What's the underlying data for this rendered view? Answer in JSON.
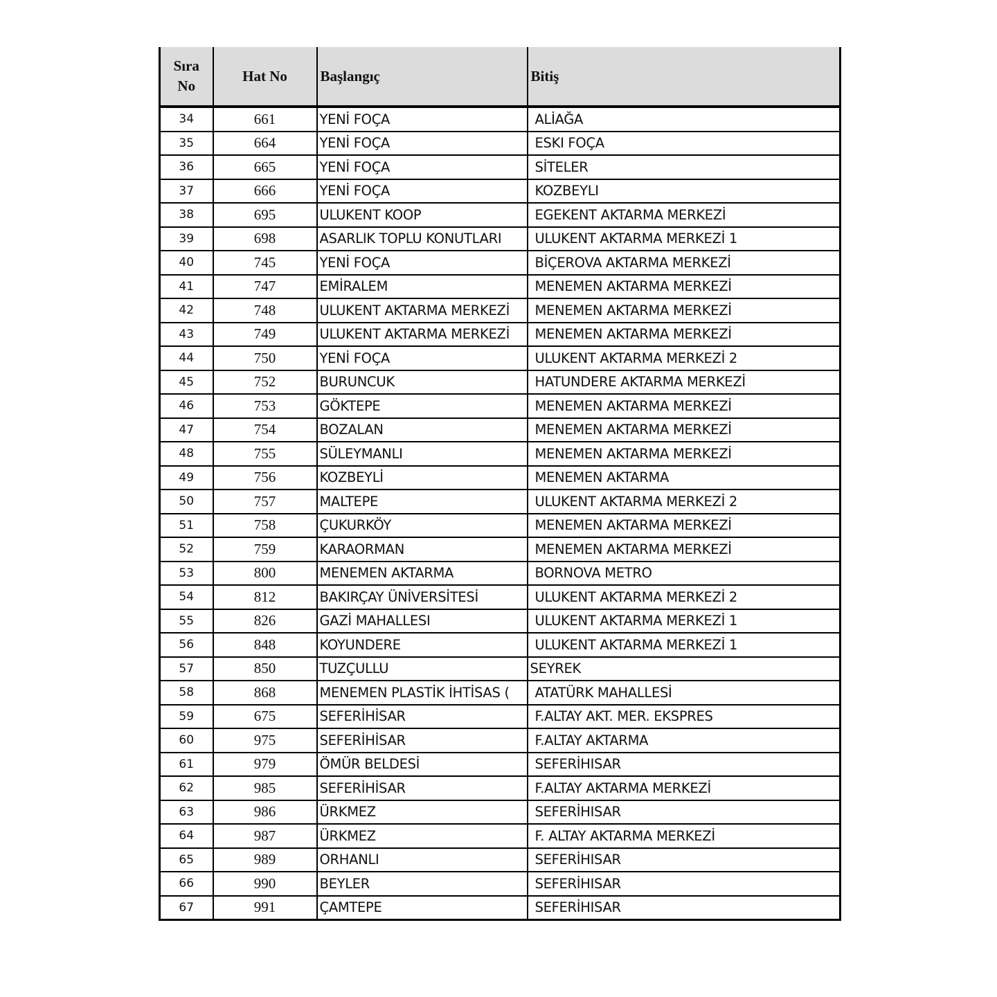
{
  "header": {
    "sira": "Sıra No",
    "hat": "Hat No",
    "baslangic": "Başlangıç",
    "bitis": "Bitiş"
  },
  "rows": [
    [
      "34",
      "661",
      "YENİ FOÇA",
      "ALİAĞA"
    ],
    [
      "35",
      "664",
      "YENİ FOÇA",
      "ESKI FOÇA"
    ],
    [
      "36",
      "665",
      "YENİ FOÇA",
      "SİTELER"
    ],
    [
      "37",
      "666",
      "YENİ FOÇA",
      "KOZBEYLI"
    ],
    [
      "38",
      "695",
      "ULUKENT KOOP",
      "EGEKENT AKTARMA MERKEZİ"
    ],
    [
      "39",
      "698",
      "ASARLIK TOPLU KONUTLARI",
      "ULUKENT AKTARMA MERKEZİ 1"
    ],
    [
      "40",
      "745",
      "YENİ FOÇA",
      "BİÇEROVA AKTARMA MERKEZİ"
    ],
    [
      "41",
      "747",
      "EMİRALEM",
      "MENEMEN AKTARMA MERKEZİ"
    ],
    [
      "42",
      "748",
      "ULUKENT AKTARMA MERKEZİ",
      "MENEMEN AKTARMA MERKEZİ"
    ],
    [
      "43",
      "749",
      "ULUKENT AKTARMA MERKEZİ",
      "MENEMEN AKTARMA MERKEZİ"
    ],
    [
      "44",
      "750",
      "YENİ FOÇA",
      "ULUKENT AKTARMA MERKEZİ 2"
    ],
    [
      "45",
      "752",
      "BURUNCUK",
      "HATUNDERE AKTARMA MERKEZİ"
    ],
    [
      "46",
      "753",
      "GÖKTEPE",
      "MENEMEN AKTARMA MERKEZİ"
    ],
    [
      "47",
      "754",
      "BOZALAN",
      "MENEMEN AKTARMA MERKEZİ"
    ],
    [
      "48",
      "755",
      "SÜLEYMANLI",
      "MENEMEN AKTARMA MERKEZİ"
    ],
    [
      "49",
      "756",
      "KOZBEYLİ",
      "MENEMEN AKTARMA"
    ],
    [
      "50",
      "757",
      "MALTEPE",
      "ULUKENT AKTARMA MERKEZİ 2"
    ],
    [
      "51",
      "758",
      "ÇUKURKÖY",
      "MENEMEN AKTARMA MERKEZİ"
    ],
    [
      "52",
      "759",
      "KARAORMAN",
      "MENEMEN AKTARMA MERKEZİ"
    ],
    [
      "53",
      "800",
      "MENEMEN AKTARMA",
      "BORNOVA METRO"
    ],
    [
      "54",
      "812",
      "BAKIRÇAY ÜNİVERSİTESİ",
      "ULUKENT AKTARMA MERKEZİ 2"
    ],
    [
      "55",
      "826",
      "GAZİ MAHALLESI",
      "ULUKENT AKTARMA MERKEZİ 1"
    ],
    [
      "56",
      "848",
      "KOYUNDERE",
      "ULUKENT AKTARMA MERKEZİ 1"
    ],
    [
      "57",
      "850",
      "TUZÇULLU",
      "SEYREK"
    ],
    [
      "58",
      "868",
      "MENEMEN PLASTİK İHTİSAS (",
      "ATATÜRK MAHALLESİ"
    ],
    [
      "59",
      "675",
      "SEFERİHİSAR",
      "F.ALTAY AKT. MER. EKSPRES"
    ],
    [
      "60",
      "975",
      "SEFERİHİSAR",
      "F.ALTAY AKTARMA"
    ],
    [
      "61",
      "979",
      "ÖMÜR BELDESİ",
      "SEFERİHISAR"
    ],
    [
      "62",
      "985",
      "SEFERİHİSAR",
      "F.ALTAY AKTARMA MERKEZİ"
    ],
    [
      "63",
      "986",
      "ÜRKMEZ",
      "SEFERİHISAR"
    ],
    [
      "64",
      "987",
      "ÜRKMEZ",
      "F. ALTAY AKTARMA MERKEZİ"
    ],
    [
      "65",
      "989",
      "ORHANLI",
      "SEFERİHISAR"
    ],
    [
      "66",
      "990",
      "BEYLER",
      "SEFERİHISAR"
    ],
    [
      "67",
      "991",
      "ÇAMTEPE",
      "SEFERİHISAR"
    ]
  ]
}
